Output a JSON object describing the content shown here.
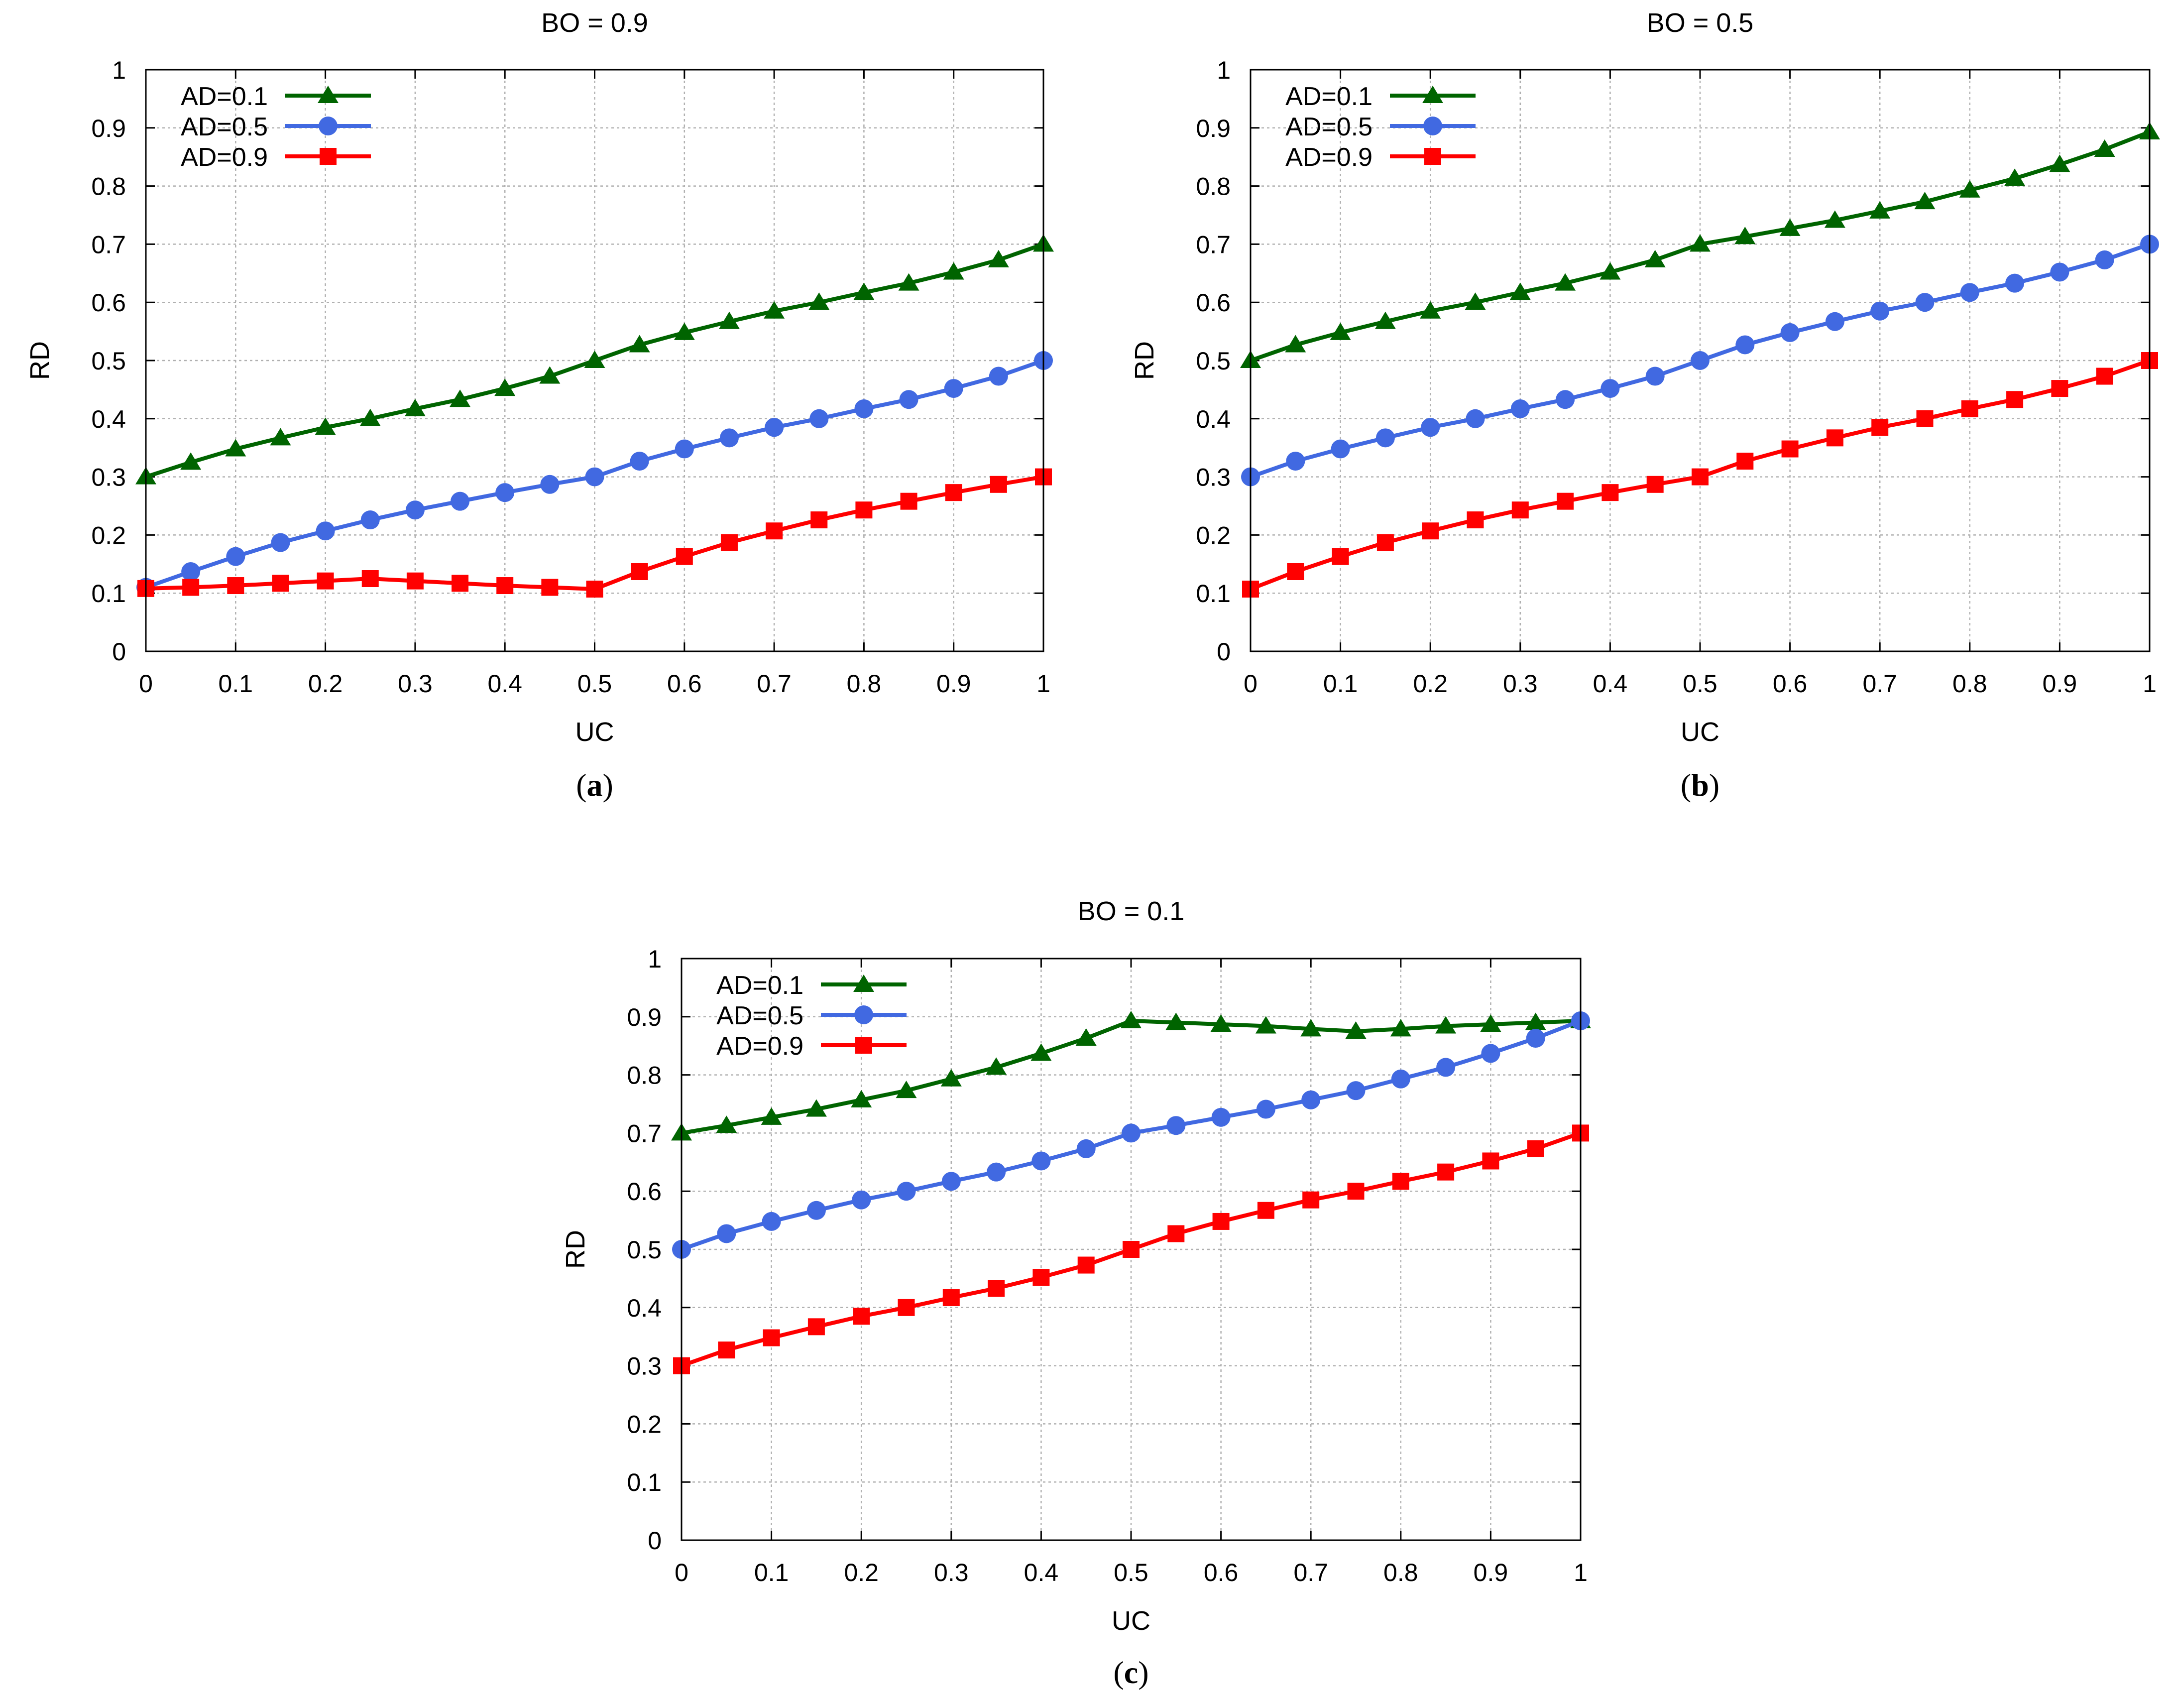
{
  "chart_data": [
    {
      "type": "line",
      "title": "BO = 0.9",
      "caption": "a",
      "xlabel": "UC",
      "ylabel": "RD",
      "xlim": [
        0,
        1
      ],
      "ylim": [
        0,
        1
      ],
      "grid": true,
      "legend_position": "top-left",
      "x": [
        0,
        0.05,
        0.1,
        0.15,
        0.2,
        0.25,
        0.3,
        0.35,
        0.4,
        0.45,
        0.5,
        0.55,
        0.6,
        0.65,
        0.7,
        0.75,
        0.8,
        0.85,
        0.9,
        0.95,
        1
      ],
      "xticks": [
        "0",
        "0.1",
        "0.2",
        "0.3",
        "0.4",
        "0.5",
        "0.6",
        "0.7",
        "0.8",
        "0.9",
        "1"
      ],
      "yticks": [
        "0",
        "0.1",
        "0.2",
        "0.3",
        "0.4",
        "0.5",
        "0.6",
        "0.7",
        "0.8",
        "0.9",
        "1"
      ],
      "series": [
        {
          "name": "AD=0.1",
          "color": "#006400",
          "marker": "triangle",
          "values": [
            0.3,
            0.325,
            0.348,
            0.367,
            0.385,
            0.4,
            0.417,
            0.433,
            0.452,
            0.473,
            0.5,
            0.527,
            0.548,
            0.567,
            0.585,
            0.6,
            0.617,
            0.633,
            0.652,
            0.673,
            0.7
          ]
        },
        {
          "name": "AD=0.5",
          "color": "#4169E1",
          "marker": "circle",
          "values": [
            0.11,
            0.137,
            0.163,
            0.187,
            0.207,
            0.226,
            0.243,
            0.258,
            0.273,
            0.287,
            0.3,
            0.327,
            0.348,
            0.367,
            0.385,
            0.4,
            0.417,
            0.433,
            0.452,
            0.473,
            0.5
          ]
        },
        {
          "name": "AD=0.9",
          "color": "#FF0000",
          "marker": "square",
          "values": [
            0.108,
            0.11,
            0.113,
            0.117,
            0.121,
            0.125,
            0.121,
            0.117,
            0.113,
            0.11,
            0.107,
            0.137,
            0.163,
            0.187,
            0.207,
            0.226,
            0.243,
            0.258,
            0.273,
            0.287,
            0.3
          ]
        }
      ]
    },
    {
      "type": "line",
      "title": "BO = 0.5",
      "caption": "b",
      "xlabel": "UC",
      "ylabel": "RD",
      "xlim": [
        0,
        1
      ],
      "ylim": [
        0,
        1
      ],
      "grid": true,
      "legend_position": "top-left",
      "x": [
        0,
        0.05,
        0.1,
        0.15,
        0.2,
        0.25,
        0.3,
        0.35,
        0.4,
        0.45,
        0.5,
        0.55,
        0.6,
        0.65,
        0.7,
        0.75,
        0.8,
        0.85,
        0.9,
        0.95,
        1
      ],
      "xticks": [
        "0",
        "0.1",
        "0.2",
        "0.3",
        "0.4",
        "0.5",
        "0.6",
        "0.7",
        "0.8",
        "0.9",
        "1"
      ],
      "yticks": [
        "0",
        "0.1",
        "0.2",
        "0.3",
        "0.4",
        "0.5",
        "0.6",
        "0.7",
        "0.8",
        "0.9",
        "1"
      ],
      "series": [
        {
          "name": "AD=0.1",
          "color": "#006400",
          "marker": "triangle",
          "values": [
            0.5,
            0.527,
            0.548,
            0.567,
            0.585,
            0.6,
            0.617,
            0.633,
            0.652,
            0.673,
            0.7,
            0.713,
            0.727,
            0.741,
            0.757,
            0.773,
            0.793,
            0.813,
            0.837,
            0.863,
            0.893
          ]
        },
        {
          "name": "AD=0.5",
          "color": "#4169E1",
          "marker": "circle",
          "values": [
            0.3,
            0.327,
            0.348,
            0.367,
            0.385,
            0.4,
            0.417,
            0.433,
            0.452,
            0.473,
            0.5,
            0.527,
            0.548,
            0.567,
            0.585,
            0.6,
            0.617,
            0.633,
            0.652,
            0.673,
            0.7
          ]
        },
        {
          "name": "AD=0.9",
          "color": "#FF0000",
          "marker": "square",
          "values": [
            0.107,
            0.137,
            0.163,
            0.187,
            0.207,
            0.226,
            0.243,
            0.258,
            0.273,
            0.287,
            0.3,
            0.327,
            0.348,
            0.367,
            0.385,
            0.4,
            0.417,
            0.433,
            0.452,
            0.473,
            0.5
          ]
        }
      ]
    },
    {
      "type": "line",
      "title": "BO = 0.1",
      "caption": "c",
      "xlabel": "UC",
      "ylabel": "RD",
      "xlim": [
        0,
        1
      ],
      "ylim": [
        0,
        1
      ],
      "grid": true,
      "legend_position": "top-left",
      "x": [
        0,
        0.05,
        0.1,
        0.15,
        0.2,
        0.25,
        0.3,
        0.35,
        0.4,
        0.45,
        0.5,
        0.55,
        0.6,
        0.65,
        0.7,
        0.75,
        0.8,
        0.85,
        0.9,
        0.95,
        1
      ],
      "xticks": [
        "0",
        "0.1",
        "0.2",
        "0.3",
        "0.4",
        "0.5",
        "0.6",
        "0.7",
        "0.8",
        "0.9",
        "1"
      ],
      "yticks": [
        "0",
        "0.1",
        "0.2",
        "0.3",
        "0.4",
        "0.5",
        "0.6",
        "0.7",
        "0.8",
        "0.9",
        "1"
      ],
      "series": [
        {
          "name": "AD=0.1",
          "color": "#006400",
          "marker": "triangle",
          "values": [
            0.7,
            0.713,
            0.727,
            0.741,
            0.757,
            0.773,
            0.793,
            0.813,
            0.837,
            0.863,
            0.893,
            0.89,
            0.887,
            0.884,
            0.879,
            0.875,
            0.879,
            0.884,
            0.887,
            0.89,
            0.893
          ]
        },
        {
          "name": "AD=0.5",
          "color": "#4169E1",
          "marker": "circle",
          "values": [
            0.5,
            0.527,
            0.548,
            0.567,
            0.585,
            0.6,
            0.617,
            0.633,
            0.652,
            0.673,
            0.7,
            0.713,
            0.727,
            0.741,
            0.757,
            0.773,
            0.793,
            0.813,
            0.837,
            0.863,
            0.893
          ]
        },
        {
          "name": "AD=0.9",
          "color": "#FF0000",
          "marker": "square",
          "values": [
            0.3,
            0.327,
            0.348,
            0.367,
            0.385,
            0.4,
            0.417,
            0.433,
            0.452,
            0.473,
            0.5,
            0.527,
            0.548,
            0.567,
            0.585,
            0.6,
            0.617,
            0.633,
            0.652,
            0.673,
            0.7
          ]
        }
      ]
    }
  ]
}
